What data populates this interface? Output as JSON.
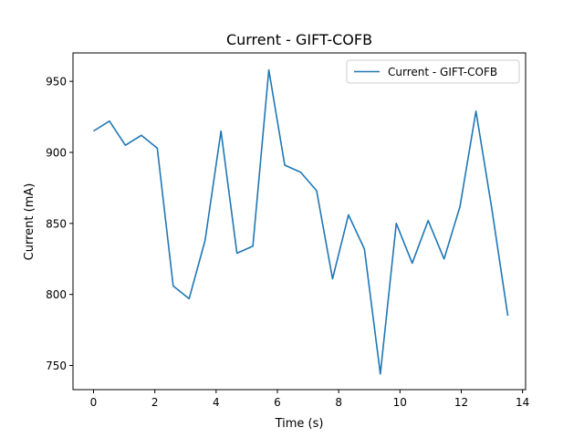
{
  "chart_data": {
    "type": "line",
    "title": "Current - GIFT-COFB",
    "xlabel": "Time (s)",
    "ylabel": "Current (mA)",
    "xlim": [
      -0.67,
      14.1
    ],
    "ylim": [
      733,
      970
    ],
    "xticks": [
      0,
      2,
      4,
      6,
      8,
      10,
      12,
      14
    ],
    "yticks": [
      750,
      800,
      850,
      900,
      950
    ],
    "grid": false,
    "legend_position": "top-right",
    "series": [
      {
        "name": "Current - GIFT-COFB",
        "color": "#1f77b4",
        "x": [
          0.0,
          0.52,
          1.04,
          1.56,
          2.08,
          2.6,
          3.12,
          3.64,
          4.16,
          4.68,
          5.2,
          5.72,
          6.24,
          6.76,
          7.28,
          7.8,
          8.32,
          8.84,
          9.36,
          9.88,
          10.4,
          10.92,
          11.44,
          11.96,
          12.48,
          13.0,
          13.52
        ],
        "y": [
          915,
          922,
          905,
          912,
          903,
          806,
          797,
          838,
          915,
          829,
          834,
          958,
          891,
          886,
          873,
          811,
          856,
          832,
          744,
          850,
          822,
          852,
          825,
          862,
          929,
          860,
          785
        ]
      }
    ]
  }
}
